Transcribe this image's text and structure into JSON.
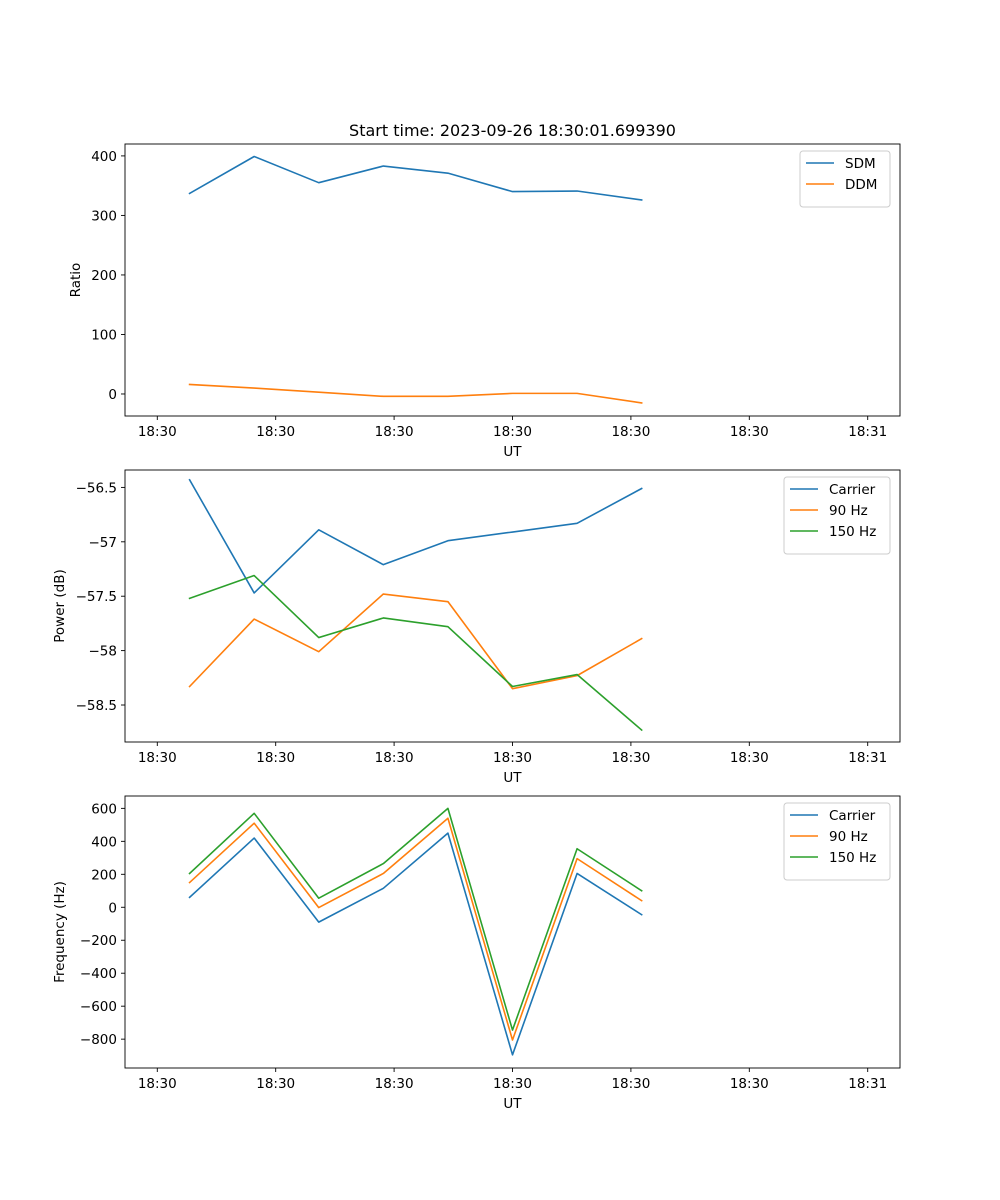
{
  "chart_data": [
    {
      "type": "line",
      "title": "Start time: 2023-09-26 18:30:01.699390",
      "xlabel": "UT",
      "ylabel": "Ratio",
      "x_tick_labels": [
        "18:30",
        "18:30",
        "18:30",
        "18:30",
        "18:30",
        "18:30",
        "18:31"
      ],
      "y_ticks": [
        0,
        100,
        200,
        300,
        400
      ],
      "ylim": [
        -37,
        420
      ],
      "xlim": [
        -0.5,
        11.5
      ],
      "x": [
        0.5,
        1.5,
        2.5,
        3.5,
        4.5,
        5.5,
        6.5,
        7.5
      ],
      "legend_position": "top-right",
      "series": [
        {
          "name": "SDM",
          "color": "#1f77b4",
          "values": [
            337,
            399,
            355,
            383,
            371,
            340,
            341,
            326
          ]
        },
        {
          "name": "DDM",
          "color": "#ff7f0e",
          "values": [
            16,
            10,
            3,
            -4,
            -4,
            1,
            1,
            -15
          ]
        }
      ]
    },
    {
      "type": "line",
      "title": "",
      "xlabel": "UT",
      "ylabel": "Power (dB)",
      "x_tick_labels": [
        "18:30",
        "18:30",
        "18:30",
        "18:30",
        "18:30",
        "18:30",
        "18:31"
      ],
      "y_ticks": [
        -56.5,
        -57.0,
        -57.5,
        -58.0,
        -58.5
      ],
      "ylim": [
        -58.84,
        -56.34
      ],
      "xlim": [
        -0.5,
        11.5
      ],
      "x": [
        0.5,
        1.5,
        2.5,
        3.5,
        4.5,
        5.5,
        6.5,
        7.5
      ],
      "legend_position": "top-right",
      "series": [
        {
          "name": "Carrier",
          "color": "#1f77b4",
          "values": [
            -56.43,
            -57.47,
            -56.89,
            -57.21,
            -56.99,
            -56.91,
            -56.83,
            -56.51
          ]
        },
        {
          "name": "90 Hz",
          "color": "#ff7f0e",
          "values": [
            -58.33,
            -57.71,
            -58.01,
            -57.48,
            -57.55,
            -58.35,
            -58.23,
            -57.89
          ]
        },
        {
          "name": "150 Hz",
          "color": "#2ca02c",
          "values": [
            -57.52,
            -57.31,
            -57.88,
            -57.7,
            -57.78,
            -58.33,
            -58.22,
            -58.73
          ]
        }
      ]
    },
    {
      "type": "line",
      "title": "",
      "xlabel": "UT",
      "ylabel": "Frequency (Hz)",
      "x_tick_labels": [
        "18:30",
        "18:30",
        "18:30",
        "18:30",
        "18:30",
        "18:30",
        "18:31"
      ],
      "y_ticks": [
        600,
        400,
        200,
        0,
        -200,
        -400,
        -600,
        -800
      ],
      "ylim": [
        -975,
        675
      ],
      "xlim": [
        -0.5,
        11.5
      ],
      "x": [
        0.5,
        1.5,
        2.5,
        3.5,
        4.5,
        5.5,
        6.5,
        7.5
      ],
      "legend_position": "top-right",
      "series": [
        {
          "name": "Carrier",
          "color": "#1f77b4",
          "values": [
            60,
            420,
            -90,
            115,
            450,
            -895,
            205,
            -45
          ]
        },
        {
          "name": "90 Hz",
          "color": "#ff7f0e",
          "values": [
            150,
            510,
            -2,
            205,
            540,
            -805,
            295,
            40
          ]
        },
        {
          "name": "150 Hz",
          "color": "#2ca02c",
          "values": [
            205,
            570,
            55,
            265,
            600,
            -745,
            355,
            100
          ]
        }
      ]
    }
  ]
}
